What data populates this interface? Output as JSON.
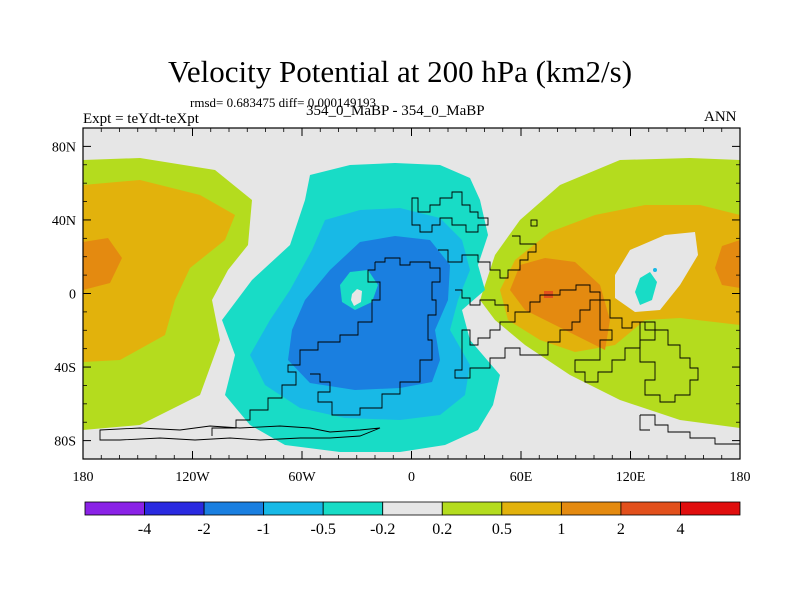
{
  "chart_data": {
    "type": "heatmap",
    "title": "Velocity Potential at 200 hPa (km2/s)",
    "stats": "rmsd= 0.683475 diff= 0.000149193",
    "left_header": "Expt = teYdt-teXpt",
    "center_header": "354_0_MaBP - 354_0_MaBP",
    "right_header": "ANN",
    "x_ticks": [
      "180",
      "120W",
      "60W",
      "0",
      "60E",
      "120E",
      "180"
    ],
    "y_ticks": [
      "80N",
      "40N",
      "0",
      "40S",
      "80S"
    ],
    "x_range": [
      -180,
      180
    ],
    "y_range": [
      -90,
      90
    ],
    "colorbar": {
      "colors": [
        "#8a22e6",
        "#2a2ae0",
        "#1a7fe0",
        "#18b9e6",
        "#18dcc6",
        "#e6e6e6",
        "#b4dc1e",
        "#e2b20c",
        "#e48a10",
        "#e2501c",
        "#e00e0e"
      ],
      "labels": [
        "-4",
        "-2",
        "-1",
        "-0.5",
        "-0.2",
        "0.2",
        "0.5",
        "1",
        "2",
        "4"
      ]
    },
    "field_colors": {
      "background": "#e6e6e6",
      "neg_02": "#18dcc6",
      "neg_05": "#18b9e6",
      "neg_1": "#1a7fe0",
      "pos_02": "#b4dc1e",
      "pos_05": "#e2b20c",
      "pos_1": "#e48a10",
      "pos_2": "#e2501c"
    }
  }
}
